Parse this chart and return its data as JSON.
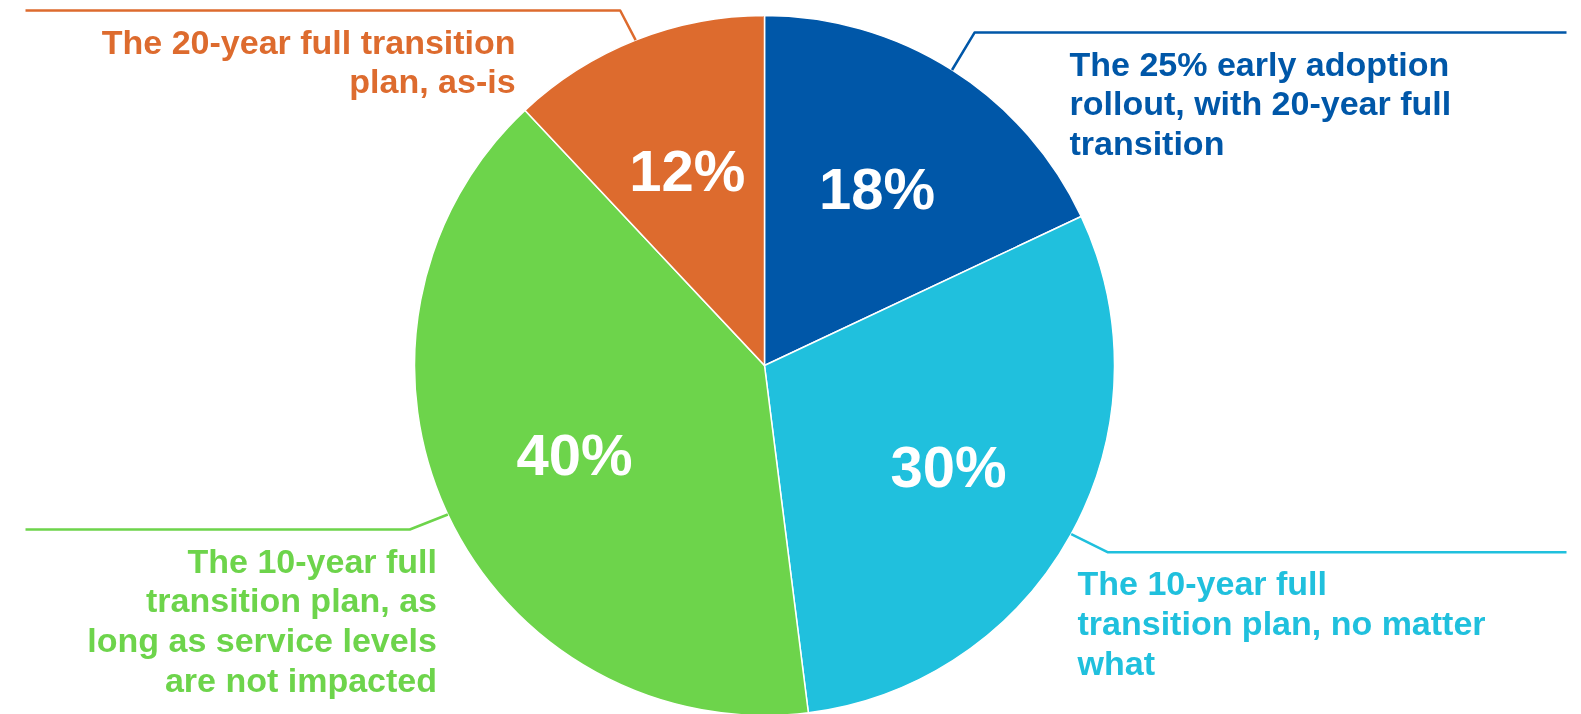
{
  "chart_data": {
    "type": "pie",
    "categories": [
      "The 25% early adoption rollout, with 20-year full transition",
      "The 10-year full transition plan, no matter what",
      "The 10-year full transition plan, as long as service levels are not impacted",
      "The 20-year full transition plan, as-is"
    ],
    "values": [
      18,
      30,
      40,
      12
    ],
    "colors": [
      "#0057a8",
      "#20c0dd",
      "#6dd44b",
      "#dd6b2e"
    ],
    "value_labels": [
      "18%",
      "30%",
      "40%",
      "12%"
    ]
  }
}
